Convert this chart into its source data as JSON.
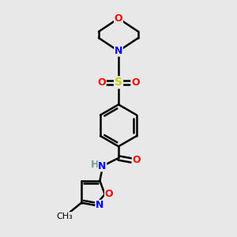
{
  "background_color": "#e8e8e8",
  "bond_color": "#000000",
  "atom_colors": {
    "O": "#ff0000",
    "N": "#0000ff",
    "S": "#cccc00",
    "C": "#000000",
    "H": "#70a0a0"
  },
  "figsize": [
    3.0,
    3.0
  ],
  "dpi": 100
}
